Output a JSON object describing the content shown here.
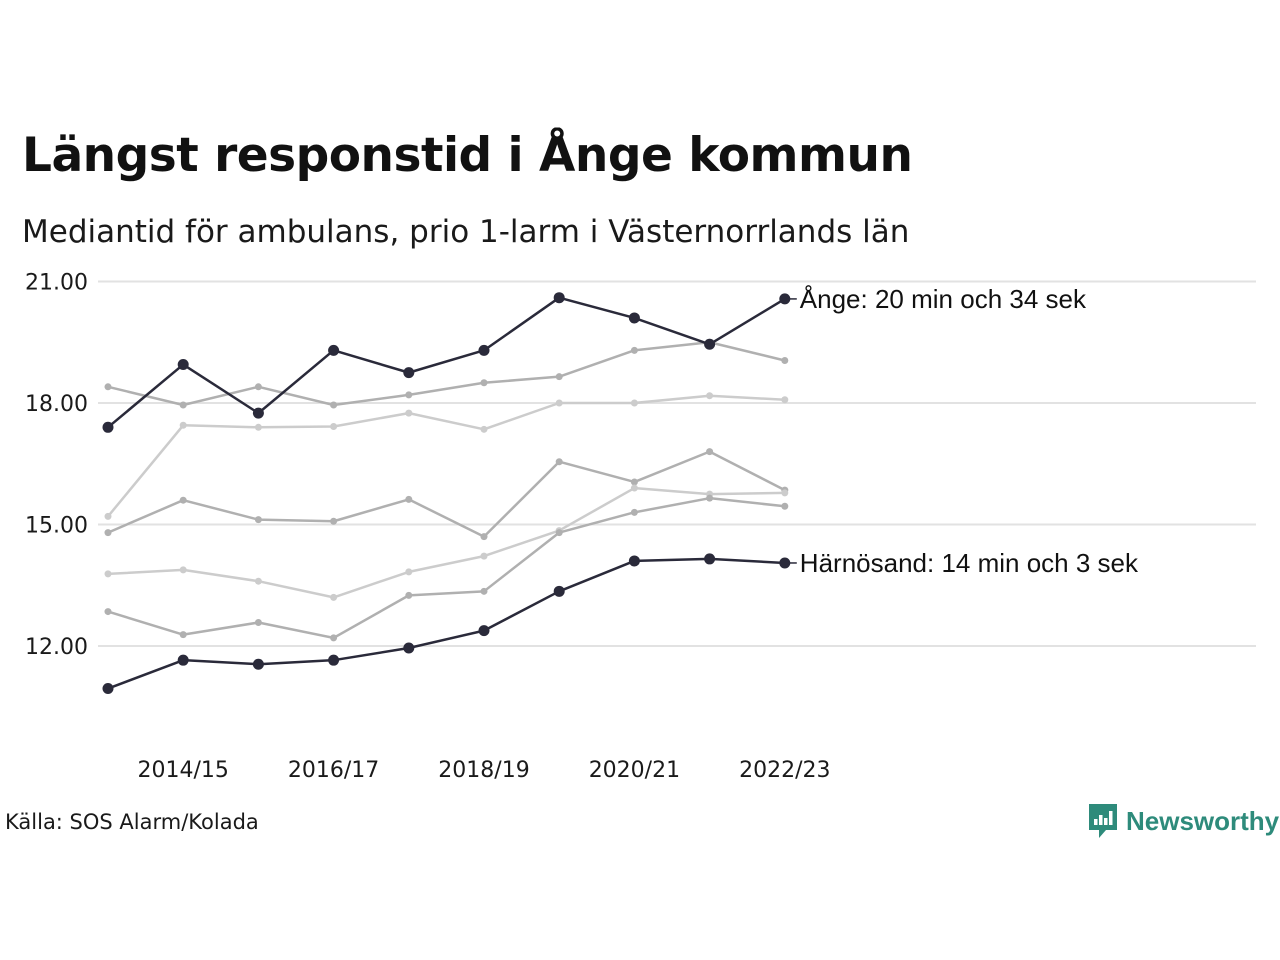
{
  "title": "Längst responstid i Ånge kommun",
  "subtitle": "Mediantid för ambulans, prio 1-larm i Västernorrlands län",
  "source": "Källa: SOS Alarm/Kolada",
  "brand": {
    "name": "Newsworthy",
    "icon": "newsworthy-logo-icon",
    "color": "#2e8b7b"
  },
  "colors": {
    "highlight": "#2a2a3a",
    "background_dark": "#b0b0b0",
    "background_light": "#cccccc",
    "grid": "#e2e2e2"
  },
  "chart_data": {
    "type": "line",
    "x": [
      "2013/14",
      "2014/15",
      "2015/16",
      "2016/17",
      "2017/18",
      "2018/19",
      "2019/20",
      "2020/21",
      "2021/22",
      "2022/23"
    ],
    "x_tick_labels": [
      "2014/15",
      "2016/17",
      "2018/19",
      "2020/21",
      "2022/23"
    ],
    "y_ticks": [
      "12.00",
      "15.00",
      "18.00",
      "21.00"
    ],
    "ylim": [
      10.8,
      21.4
    ],
    "grid": "horizontal",
    "highlight_series": [
      {
        "name": "Ånge",
        "label": "Ånge: 20 min och 34 sek",
        "values": [
          17.4,
          18.95,
          17.75,
          19.3,
          18.75,
          19.3,
          20.6,
          20.1,
          19.45,
          20.57
        ]
      },
      {
        "name": "Härnösand",
        "label": "Härnösand: 14 min och 3 sek",
        "values": [
          10.95,
          11.65,
          11.55,
          11.65,
          11.95,
          12.38,
          13.35,
          14.1,
          14.15,
          14.05
        ]
      }
    ],
    "background_series": [
      {
        "values": [
          18.4,
          17.95,
          18.4,
          17.95,
          18.2,
          18.5,
          18.65,
          19.3,
          19.5,
          19.05
        ],
        "shade": "dark"
      },
      {
        "values": [
          15.2,
          17.45,
          17.4,
          17.42,
          17.75,
          17.35,
          18.0,
          18.0,
          18.18,
          18.08
        ],
        "shade": "light"
      },
      {
        "values": [
          14.8,
          15.6,
          15.12,
          15.08,
          15.62,
          14.7,
          16.55,
          16.05,
          16.8,
          15.85
        ],
        "shade": "dark"
      },
      {
        "values": [
          13.78,
          13.88,
          13.6,
          13.2,
          13.83,
          14.22,
          14.85,
          15.9,
          15.75,
          15.78
        ],
        "shade": "light"
      },
      {
        "values": [
          12.85,
          12.28,
          12.58,
          12.2,
          13.25,
          13.35,
          14.8,
          15.3,
          15.65,
          15.45
        ],
        "shade": "dark"
      }
    ]
  }
}
